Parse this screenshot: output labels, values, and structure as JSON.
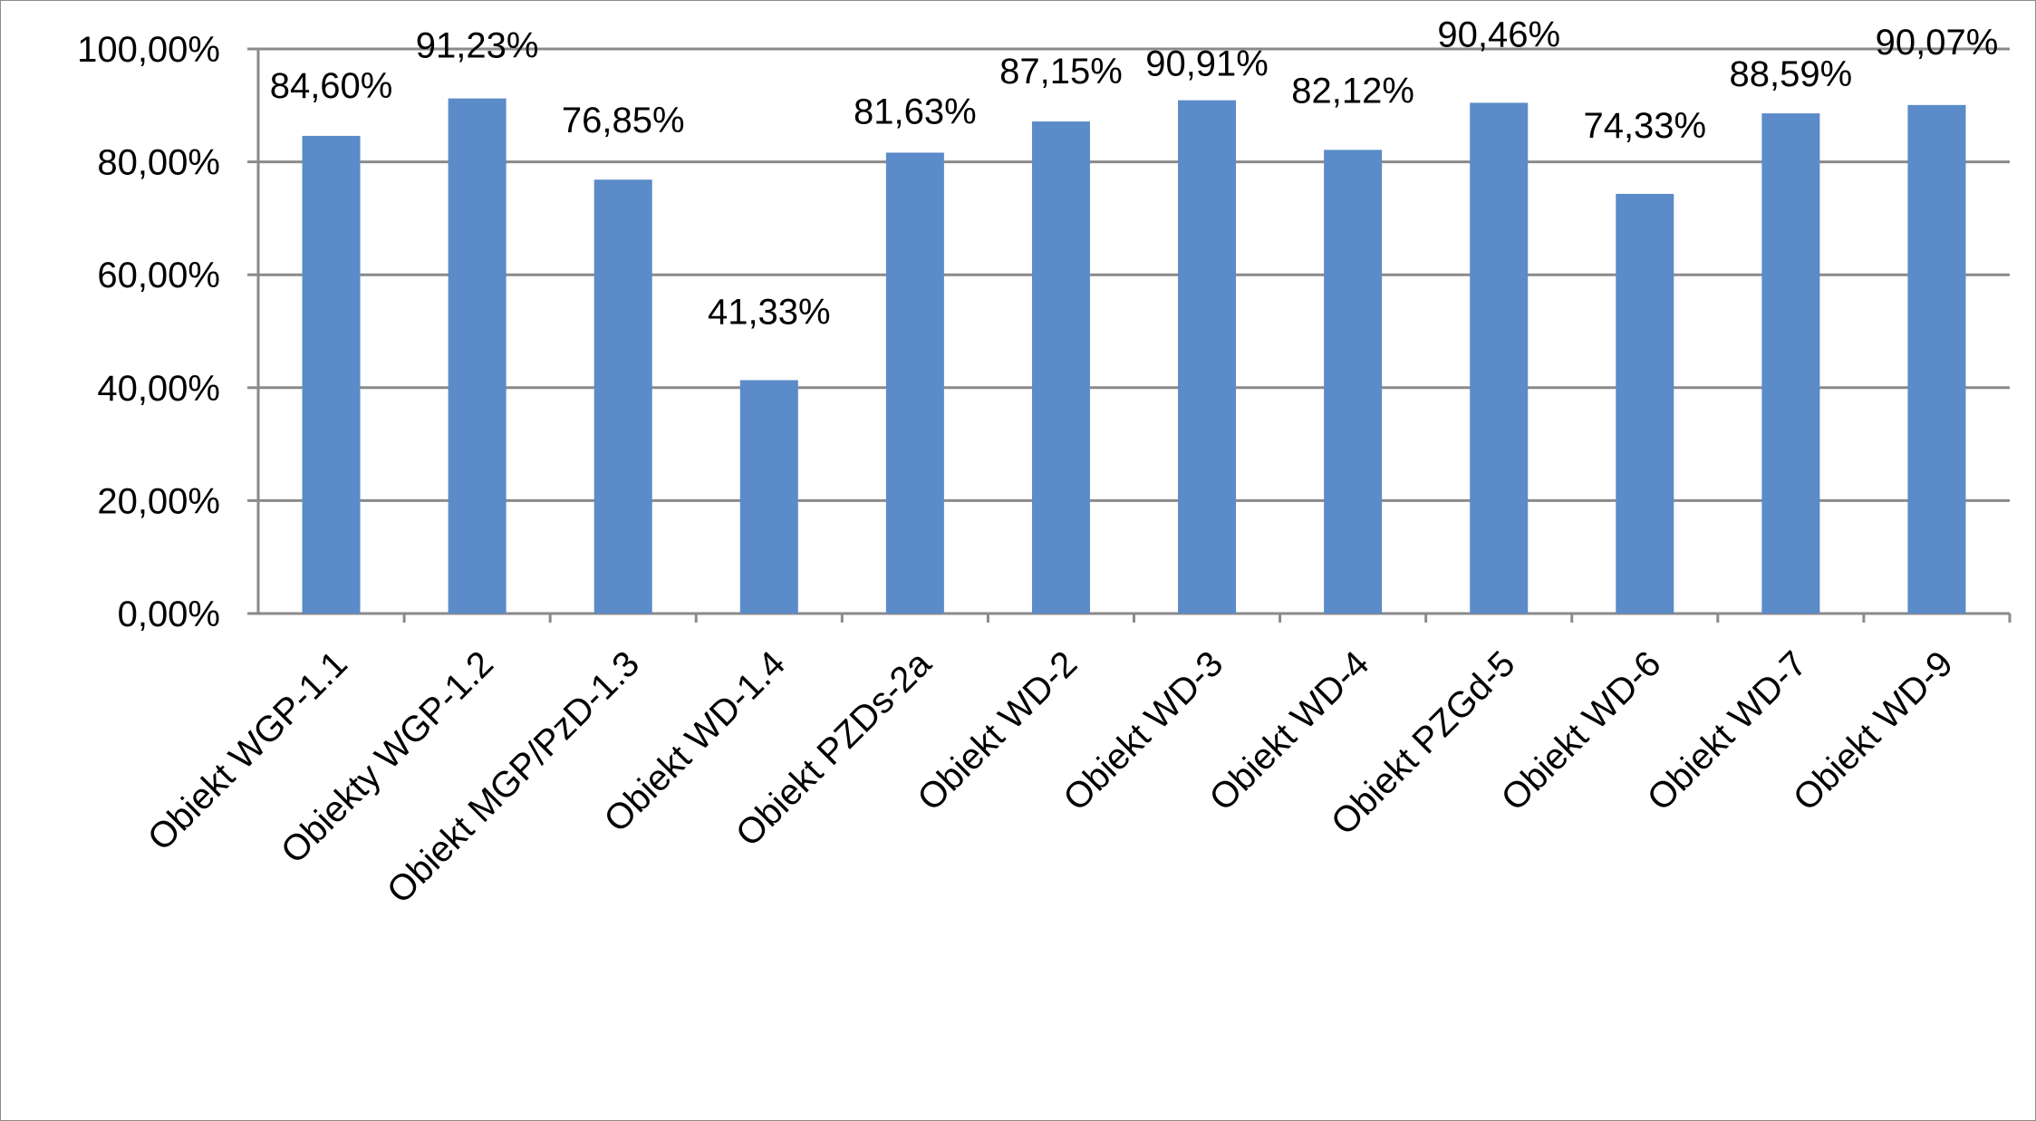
{
  "chart_data": {
    "type": "bar",
    "title": "",
    "xlabel": "",
    "ylabel": "",
    "ylim": [
      0,
      1
    ],
    "grid": true,
    "legend": "none",
    "bar_color": "#5b8bc9",
    "categories": [
      "Obiekt WGP-1.1",
      "Obiekty WGP-1.2",
      "Obiekt MGP/PzD-1.3",
      "Obiekt WD-1.4",
      "Obiekt PZDs-2a",
      "Obiekt WD-2",
      "Obiekt WD-3",
      "Obiekt WD-4",
      "Obiekt PZGd-5",
      "Obiekt WD-6",
      "Obiekt WD-7",
      "Obiekt WD-9"
    ],
    "values": [
      0.846,
      0.9123,
      0.7685,
      0.4133,
      0.8163,
      0.8715,
      0.9091,
      0.8212,
      0.9046,
      0.7433,
      0.8859,
      0.9007
    ],
    "data_labels": [
      "84,60%",
      "91,23%",
      "76,85%",
      "41,33%",
      "81,63%",
      "87,15%",
      "90,91%",
      "82,12%",
      "90,46%",
      "74,33%",
      "88,59%",
      "90,07%"
    ],
    "y_ticks": [
      0,
      0.2,
      0.4,
      0.6,
      0.8,
      1.0
    ],
    "y_tick_labels": [
      "0,00%",
      "20,00%",
      "40,00%",
      "60,00%",
      "80,00%",
      "100,00%"
    ]
  }
}
